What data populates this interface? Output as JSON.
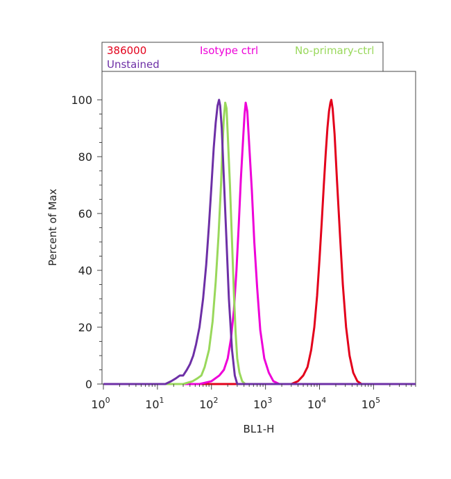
{
  "chart_data": {
    "type": "line",
    "title": "",
    "xlabel": "BL1-H",
    "ylabel": "Percent of Max",
    "x_scale": "log",
    "xlim": [
      1,
      600000
    ],
    "ylim": [
      0,
      110
    ],
    "x_ticks": [
      {
        "base": "10",
        "exp": "0",
        "value": 1
      },
      {
        "base": "10",
        "exp": "1",
        "value": 10
      },
      {
        "base": "10",
        "exp": "2",
        "value": 100
      },
      {
        "base": "10",
        "exp": "3",
        "value": 1000
      },
      {
        "base": "10",
        "exp": "4",
        "value": 10000
      },
      {
        "base": "10",
        "exp": "5",
        "value": 100000
      }
    ],
    "y_ticks": [
      {
        "label": "0",
        "value": 0
      },
      {
        "label": "20",
        "value": 20
      },
      {
        "label": "40",
        "value": 40
      },
      {
        "label": "60",
        "value": 60
      },
      {
        "label": "80",
        "value": 80
      },
      {
        "label": "100",
        "value": 100
      }
    ],
    "grid": false,
    "legend_placement": "top, above plot",
    "series": [
      {
        "name": "386000",
        "color": "#e3001b",
        "x": [
          1,
          3000,
          4000,
          5000,
          6000,
          7000,
          8000,
          9000,
          10000,
          11000,
          12000,
          13000,
          14000,
          15000,
          15900,
          16500,
          17500,
          19000,
          21000,
          24000,
          27000,
          31000,
          36000,
          42000,
          50000,
          60000,
          600000
        ],
        "y": [
          0,
          0,
          1,
          3,
          6,
          12,
          20,
          31,
          44,
          57,
          70,
          81,
          90,
          96,
          99,
          100,
          97,
          88,
          72,
          52,
          35,
          20,
          10,
          4,
          1,
          0,
          0
        ]
      },
      {
        "name": "Isotype ctrl",
        "color": "#ee00d8",
        "x": [
          1,
          60,
          100,
          140,
          170,
          200,
          230,
          260,
          290,
          320,
          350,
          390,
          410,
          430,
          460,
          500,
          560,
          620,
          700,
          800,
          950,
          1150,
          1400,
          1800,
          600000
        ],
        "y": [
          0,
          0,
          1,
          3,
          5,
          9,
          16,
          26,
          40,
          56,
          72,
          88,
          95,
          99,
          96,
          84,
          68,
          50,
          34,
          19,
          9,
          4,
          1,
          0,
          0
        ]
      },
      {
        "name": "No-primary-ctrl",
        "color": "#99d85b",
        "x": [
          1,
          30,
          45,
          55,
          65,
          75,
          90,
          105,
          120,
          135,
          150,
          160,
          170,
          180,
          190,
          200,
          220,
          240,
          260,
          280,
          300,
          330,
          370,
          420,
          600000
        ],
        "y": [
          0,
          0,
          1,
          2,
          3,
          6,
          12,
          22,
          36,
          52,
          70,
          84,
          94,
          99,
          97,
          88,
          70,
          50,
          32,
          18,
          9,
          4,
          1,
          0,
          0
        ]
      },
      {
        "name": "Unstained",
        "color": "#6d2fa6",
        "x": [
          1,
          14,
          18,
          22,
          26,
          30,
          35,
          40,
          46,
          52,
          60,
          70,
          80,
          90,
          100,
          110,
          120,
          130,
          138,
          145,
          155,
          170,
          190,
          210,
          240,
          270,
          300,
          600000
        ],
        "y": [
          0,
          0,
          1,
          2,
          3,
          3,
          5,
          7,
          10,
          14,
          20,
          30,
          42,
          56,
          70,
          83,
          92,
          98,
          100,
          98,
          90,
          72,
          50,
          30,
          12,
          3,
          0,
          0
        ]
      }
    ]
  }
}
